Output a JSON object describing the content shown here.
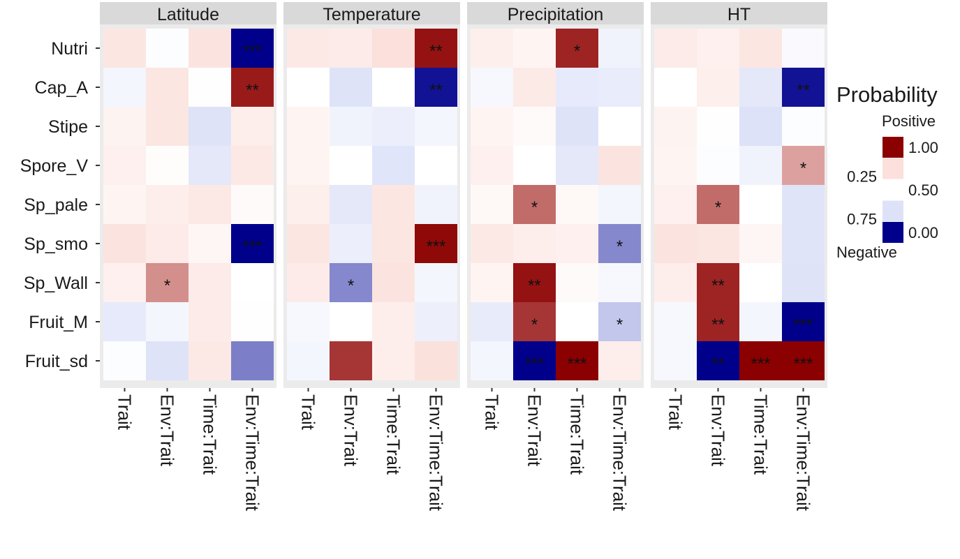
{
  "chart_data": {
    "type": "heatmap",
    "facets": [
      "Latitude",
      "Temperature",
      "Precipitation",
      "HT"
    ],
    "rows": [
      "Nutri",
      "Cap_A",
      "Stipe",
      "Spore_V",
      "Sp_pale",
      "Sp_smo",
      "Sp_Wall",
      "Fruit_M",
      "Fruit_sd"
    ],
    "columns": [
      "Trait",
      "Env:Trait",
      "Time:Trait",
      "Env:Time:Trait"
    ],
    "values": [
      [
        [
          0.7,
          0.48,
          0.72,
          0.0
        ],
        [
          0.68,
          0.66,
          0.75,
          0.98
        ],
        [
          0.63,
          0.58,
          0.96,
          0.4
        ],
        [
          0.66,
          0.62,
          0.7,
          0.46
        ]
      ],
      [
        [
          0.42,
          0.7,
          0.49,
          0.97
        ],
        [
          0.5,
          0.26,
          0.5,
          0.02
        ],
        [
          0.44,
          0.67,
          0.32,
          0.34
        ],
        [
          0.5,
          0.63,
          0.3,
          0.02
        ]
      ],
      [
        [
          0.6,
          0.7,
          0.26,
          0.64
        ],
        [
          0.58,
          0.4,
          0.36,
          0.42
        ],
        [
          0.58,
          0.54,
          0.26,
          0.5
        ],
        [
          0.6,
          0.51,
          0.25,
          0.48
        ]
      ],
      [
        [
          0.62,
          0.52,
          0.3,
          0.68
        ],
        [
          0.58,
          0.5,
          0.28,
          0.5
        ],
        [
          0.62,
          0.5,
          0.3,
          0.72
        ],
        [
          0.58,
          0.48,
          0.4,
          0.82
        ]
      ],
      [
        [
          0.58,
          0.64,
          0.68,
          0.54
        ],
        [
          0.63,
          0.3,
          0.7,
          0.4
        ],
        [
          0.56,
          0.88,
          0.56,
          0.42
        ],
        [
          0.62,
          0.88,
          0.5,
          0.27
        ]
      ],
      [
        [
          0.72,
          0.66,
          0.57,
          0.0
        ],
        [
          0.7,
          0.36,
          0.7,
          0.99
        ],
        [
          0.68,
          0.64,
          0.62,
          0.15
        ],
        [
          0.72,
          0.7,
          0.57,
          0.27
        ]
      ],
      [
        [
          0.62,
          0.84,
          0.66,
          0.5
        ],
        [
          0.66,
          0.15,
          0.72,
          0.42
        ],
        [
          0.58,
          0.98,
          0.54,
          0.44
        ],
        [
          0.64,
          0.96,
          0.5,
          0.26
        ]
      ],
      [
        [
          0.32,
          0.42,
          0.66,
          0.51
        ],
        [
          0.44,
          0.5,
          0.64,
          0.37
        ],
        [
          0.33,
          0.94,
          0.5,
          0.22
        ],
        [
          0.44,
          0.96,
          0.42,
          0.0
        ]
      ],
      [
        [
          0.48,
          0.26,
          0.68,
          0.14
        ],
        [
          0.42,
          0.94,
          0.64,
          0.74
        ],
        [
          0.42,
          0.0,
          1.0,
          0.64
        ],
        [
          0.44,
          0.0,
          1.0,
          1.0
        ]
      ]
    ],
    "significance": [
      [
        [
          "",
          "",
          "",
          "***"
        ],
        [
          "",
          "",
          "",
          "**"
        ],
        [
          "",
          "",
          "*",
          ""
        ],
        [
          "",
          "",
          "",
          ""
        ]
      ],
      [
        [
          "",
          "",
          "",
          "**"
        ],
        [
          "",
          "",
          "",
          "**"
        ],
        [
          "",
          "",
          "",
          ""
        ],
        [
          "",
          "",
          "",
          "**"
        ]
      ],
      [
        [
          "",
          "",
          "",
          ""
        ],
        [
          "",
          "",
          "",
          ""
        ],
        [
          "",
          "",
          "",
          ""
        ],
        [
          "",
          "",
          "",
          ""
        ]
      ],
      [
        [
          "",
          "",
          "",
          ""
        ],
        [
          "",
          "",
          "",
          ""
        ],
        [
          "",
          "",
          "",
          ""
        ],
        [
          "",
          "",
          "",
          "*"
        ]
      ],
      [
        [
          "",
          "",
          "",
          ""
        ],
        [
          "",
          "",
          "",
          ""
        ],
        [
          "",
          "*",
          "",
          ""
        ],
        [
          "",
          "*",
          "",
          ""
        ]
      ],
      [
        [
          "",
          "",
          "",
          "***"
        ],
        [
          "",
          "",
          "",
          "***"
        ],
        [
          "",
          "",
          "",
          "*"
        ],
        [
          "",
          "",
          "",
          ""
        ]
      ],
      [
        [
          "",
          "*",
          "",
          ""
        ],
        [
          "",
          "*",
          "",
          ""
        ],
        [
          "",
          "**",
          "",
          ""
        ],
        [
          "",
          "**",
          "",
          ""
        ]
      ],
      [
        [
          "",
          "",
          "",
          ""
        ],
        [
          "",
          "",
          "",
          ""
        ],
        [
          "",
          "*",
          "",
          "*"
        ],
        [
          "",
          "**",
          "",
          "***"
        ]
      ],
      [
        [
          "",
          "",
          "",
          ""
        ],
        [
          "",
          "",
          "",
          ""
        ],
        [
          "",
          "***",
          "***",
          ""
        ],
        [
          "",
          "**",
          "***",
          "***"
        ]
      ]
    ],
    "value_range": [
      0,
      1
    ],
    "colors": {
      "low": "#00008b",
      "mid_low": "#dde2f8",
      "mid": "#ffffff",
      "mid_high": "#fbe0db",
      "high": "#8b0000",
      "panel_background": "#ebebeb",
      "strip_background": "#d9d9d9",
      "tick": "#333333",
      "text": "#1a1a1a"
    },
    "grid": false,
    "legend": {
      "title": "Probability",
      "position": "right",
      "top_label": "Positive",
      "bottom_label": "Negative",
      "stops": [
        {
          "label": "1.00",
          "value": 1.0,
          "side": "right"
        },
        {
          "label": "0.25",
          "value": 0.75,
          "side": "left"
        },
        {
          "label": "0.50",
          "value": 0.5,
          "side": "right"
        },
        {
          "label": "0.75",
          "value": 0.25,
          "side": "left"
        },
        {
          "label": "0.00",
          "value": 0.0,
          "side": "right"
        }
      ]
    }
  }
}
